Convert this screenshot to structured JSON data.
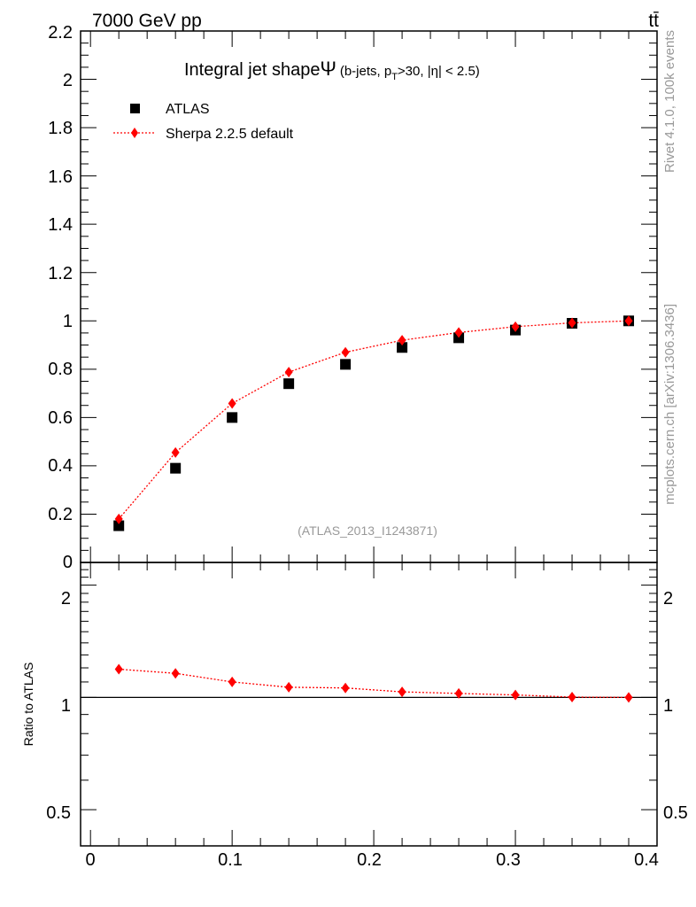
{
  "header": {
    "energy_label": "7000 GeV pp",
    "process_label": "tt̄",
    "rivet_label": "Rivet 4.1.0,  100k events",
    "source_label": "mcplots.cern.ch [arXiv:1306.3436]"
  },
  "main_plot": {
    "title_main": "Integral jet shape",
    "title_symbol": "Ψ",
    "title_sub_pre": "(b-jets, p",
    "title_sub_index": "T",
    "title_sub_post": ">30, |η| < 2.5)",
    "analysis_tag": "(ATLAS_2013_I1243871)",
    "legend": [
      {
        "name": "ATLAS",
        "marker": "square",
        "color": "#000000"
      },
      {
        "name": "Sherpa 2.2.5 default",
        "marker": "diamond",
        "color": "#ff0000"
      }
    ],
    "y_ticks": [
      "0",
      "0.2",
      "0.4",
      "0.6",
      "0.8",
      "1",
      "1.2",
      "1.4",
      "1.6",
      "1.8",
      "2",
      "2.2"
    ]
  },
  "ratio_plot": {
    "ylabel": "Ratio to ATLAS",
    "y_ticks_left": [
      "2",
      "1",
      "0.5"
    ],
    "y_ticks_right": [
      "2",
      "1",
      "0.5"
    ]
  },
  "x_ticks": [
    "0",
    "0.1",
    "0.2",
    "0.3",
    "0.4"
  ],
  "chart_data": [
    {
      "type": "scatter",
      "title": "Integral jet shape Ψ (b-jets, pT>30, |η| < 2.5)",
      "xlabel": "",
      "ylabel": "",
      "xlim": [
        -0.007,
        0.4
      ],
      "ylim": [
        0,
        2.2
      ],
      "x": [
        0.02,
        0.06,
        0.1,
        0.14,
        0.18,
        0.22,
        0.26,
        0.3,
        0.34,
        0.38
      ],
      "series": [
        {
          "name": "ATLAS",
          "values": [
            0.152,
            0.39,
            0.6,
            0.74,
            0.82,
            0.89,
            0.93,
            0.962,
            0.99,
            1.0
          ]
        },
        {
          "name": "Sherpa 2.2.5 default",
          "values": [
            0.18,
            0.455,
            0.658,
            0.788,
            0.87,
            0.92,
            0.952,
            0.976,
            0.992,
            1.0
          ]
        }
      ]
    },
    {
      "type": "line",
      "title": "Ratio to ATLAS",
      "ylabel": "Ratio to ATLAS",
      "yscale": "log",
      "xlim": [
        -0.007,
        0.4
      ],
      "ylim": [
        0.4,
        2.3
      ],
      "x": [
        0.02,
        0.06,
        0.1,
        0.14,
        0.18,
        0.22,
        0.26,
        0.3,
        0.34,
        0.38
      ],
      "reference": 1,
      "series": [
        {
          "name": "Sherpa 2.2.5 default",
          "values": [
            1.19,
            1.16,
            1.1,
            1.065,
            1.06,
            1.035,
            1.025,
            1.015,
            1.002,
            1.0
          ]
        }
      ]
    }
  ]
}
